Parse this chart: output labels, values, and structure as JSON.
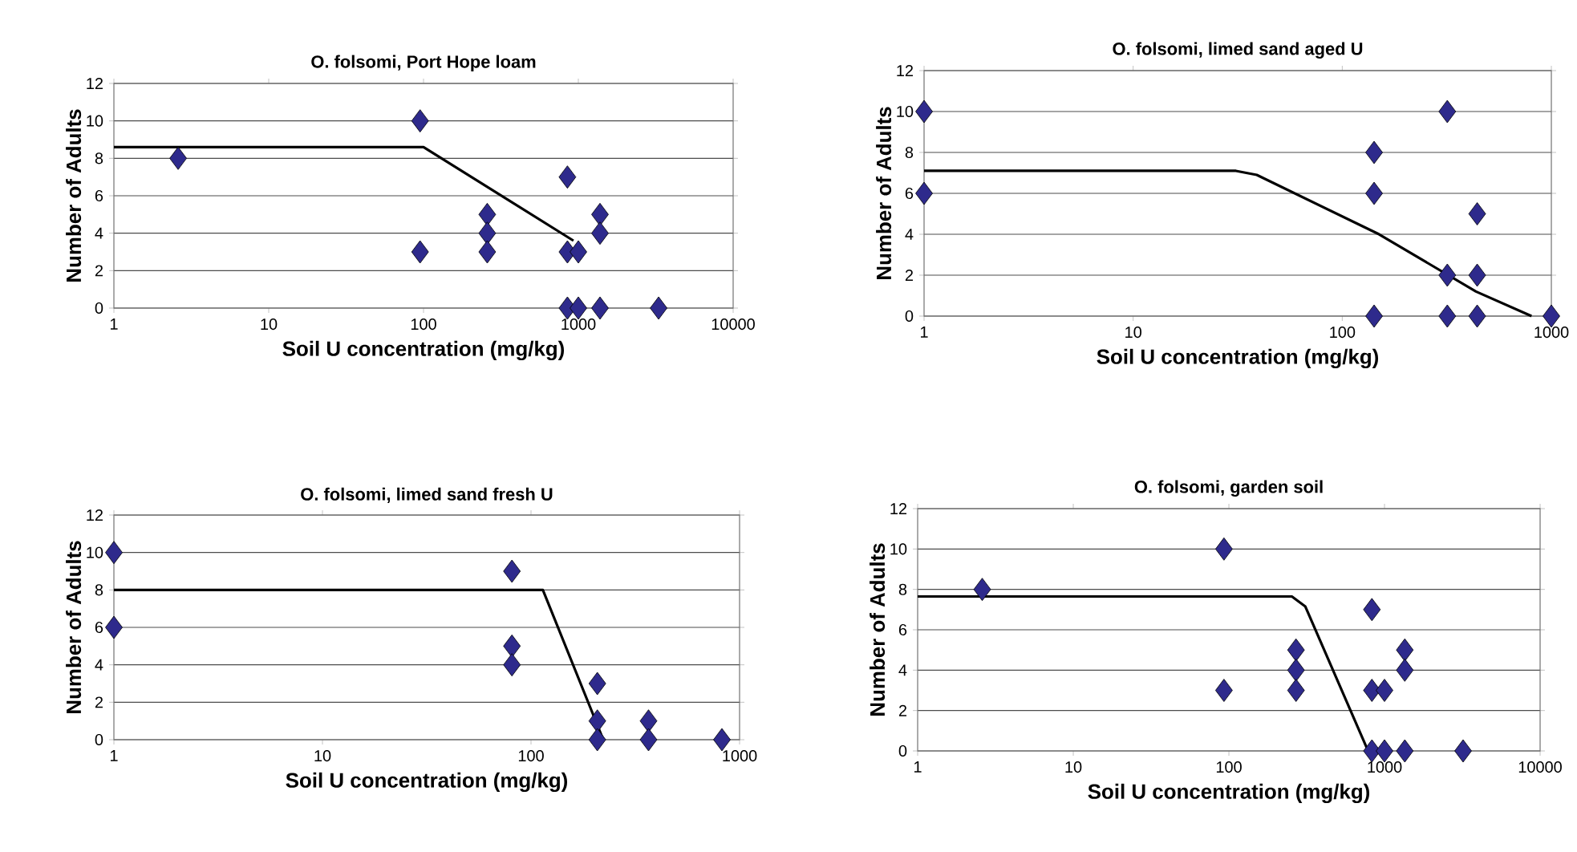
{
  "chart_data": [
    {
      "type": "scatter",
      "title": "O. folsomi, Port Hope loam",
      "xlabel": "Soil U concentration (mg/kg)",
      "ylabel": "Number of Adults",
      "log": "x",
      "xlim": [
        1,
        10000
      ],
      "ylim": [
        0,
        12
      ],
      "xticks": [
        1,
        10,
        100,
        1000,
        10000
      ],
      "yticks": [
        0,
        2,
        4,
        6,
        8,
        10,
        12
      ],
      "grid": "y",
      "marker": "diamond",
      "series": [
        {
          "color": "#2e2a8c",
          "x": [
            2.6,
            95,
            95,
            258,
            258,
            258,
            850,
            850,
            850,
            1000,
            1000,
            1380,
            1380,
            1380,
            3300
          ],
          "values": [
            8,
            10,
            3,
            5,
            4,
            3,
            7,
            3,
            0,
            3,
            0,
            5,
            4,
            0,
            0
          ]
        },
        {
          "type": "line",
          "color": "#000000",
          "marker": "none",
          "x": [
            1,
            100,
            930
          ],
          "values": [
            8.6,
            8.6,
            3.6
          ]
        }
      ]
    },
    {
      "type": "scatter",
      "title": "O. folsomi, limed sand aged U",
      "xlabel": "Soil U concentration (mg/kg)",
      "ylabel": "Number of Adults",
      "log": "x",
      "xlim": [
        1,
        1000
      ],
      "ylim": [
        0,
        12
      ],
      "xticks": [
        1,
        10,
        100,
        1000
      ],
      "yticks": [
        0,
        2,
        4,
        6,
        8,
        10,
        12
      ],
      "grid": "y",
      "marker": "diamond",
      "series": [
        {
          "color": "#2e2a8c",
          "x": [
            1,
            1,
            142,
            142,
            142,
            318,
            318,
            318,
            442,
            442,
            442,
            1000
          ],
          "values": [
            10,
            6,
            8,
            6,
            0,
            10,
            2,
            0,
            5,
            2,
            0,
            0
          ]
        },
        {
          "type": "line",
          "color": "#000000",
          "marker": "none",
          "x": [
            1,
            31,
            39,
            150,
            436,
            804
          ],
          "values": [
            7.1,
            7.1,
            6.9,
            4,
            1.2,
            0
          ]
        }
      ]
    },
    {
      "type": "scatter",
      "title": "O. folsomi, limed sand fresh U",
      "xlabel": "Soil U concentration (mg/kg)",
      "ylabel": "Number of Adults",
      "log": "x",
      "xlim": [
        1,
        1000
      ],
      "ylim": [
        0,
        12
      ],
      "xticks": [
        1,
        10,
        100,
        1000
      ],
      "yticks": [
        0,
        2,
        4,
        6,
        8,
        10,
        12
      ],
      "grid": "y",
      "marker": "diamond",
      "series": [
        {
          "color": "#2e2a8c",
          "x": [
            1,
            1,
            81,
            81,
            81,
            208,
            208,
            208,
            366,
            366,
            823
          ],
          "values": [
            10,
            6,
            9,
            5,
            4,
            3,
            1,
            0,
            1,
            0,
            0
          ]
        },
        {
          "type": "line",
          "color": "#000000",
          "marker": "none",
          "x": [
            1,
            114,
            222
          ],
          "values": [
            8,
            8,
            0
          ]
        }
      ]
    },
    {
      "type": "scatter",
      "title": "O. folsomi, garden soil",
      "xlabel": "Soil U concentration (mg/kg)",
      "ylabel": "Number of Adults",
      "log": "x",
      "xlim": [
        1,
        10000
      ],
      "ylim": [
        0,
        12
      ],
      "xticks": [
        1,
        10,
        100,
        1000,
        10000
      ],
      "yticks": [
        0,
        2,
        4,
        6,
        8,
        10,
        12
      ],
      "grid": "y",
      "marker": "diamond",
      "series": [
        {
          "color": "#2e2a8c",
          "x": [
            2.6,
            93,
            93,
            270,
            270,
            270,
            830,
            830,
            830,
            1000,
            1000,
            1350,
            1350,
            1350,
            3200
          ],
          "values": [
            8,
            10,
            3,
            5,
            4,
            3,
            7,
            3,
            0,
            3,
            0,
            5,
            4,
            0,
            0
          ]
        },
        {
          "type": "line",
          "color": "#000000",
          "marker": "none",
          "x": [
            1,
            254,
            310,
            785
          ],
          "values": [
            7.65,
            7.65,
            7.15,
            0
          ]
        }
      ]
    }
  ]
}
